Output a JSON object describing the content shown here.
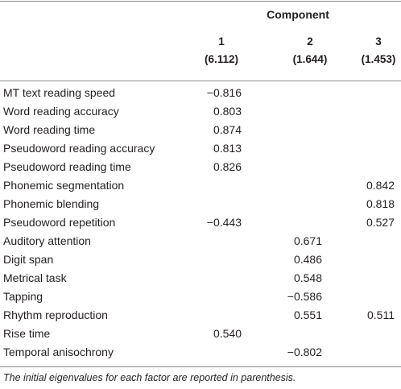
{
  "table": {
    "group_header": "Component",
    "columns": [
      {
        "number": "1",
        "eigenvalue": "(6.112)"
      },
      {
        "number": "2",
        "eigenvalue": "(1.644)"
      },
      {
        "number": "3",
        "eigenvalue": "(1.453)"
      }
    ],
    "rows": [
      {
        "label": "MT text reading speed",
        "v1": "−0.816",
        "v2": "",
        "v3": ""
      },
      {
        "label": "Word reading accuracy",
        "v1": "0.803",
        "v2": "",
        "v3": ""
      },
      {
        "label": "Word reading time",
        "v1": "0.874",
        "v2": "",
        "v3": ""
      },
      {
        "label": "Pseudoword reading accuracy",
        "v1": "0.813",
        "v2": "",
        "v3": ""
      },
      {
        "label": "Pseudoword reading time",
        "v1": "0.826",
        "v2": "",
        "v3": ""
      },
      {
        "label": "Phonemic segmentation",
        "v1": "",
        "v2": "",
        "v3": "0.842"
      },
      {
        "label": "Phonemic blending",
        "v1": "",
        "v2": "",
        "v3": "0.818"
      },
      {
        "label": "Pseudoword repetition",
        "v1": "−0.443",
        "v2": "",
        "v3": "0.527"
      },
      {
        "label": "Auditory attention",
        "v1": "",
        "v2": "0.671",
        "v3": ""
      },
      {
        "label": "Digit span",
        "v1": "",
        "v2": "0.486",
        "v3": ""
      },
      {
        "label": "Metrical task",
        "v1": "",
        "v2": "0.548",
        "v3": ""
      },
      {
        "label": "Tapping",
        "v1": "",
        "v2": "−0.586",
        "v3": ""
      },
      {
        "label": "Rhythm reproduction",
        "v1": "",
        "v2": "0.551",
        "v3": "0.511"
      },
      {
        "label": "Rise time",
        "v1": "0.540",
        "v2": "",
        "v3": ""
      },
      {
        "label": "Temporal anisochrony",
        "v1": "",
        "v2": "−0.802",
        "v3": ""
      }
    ],
    "footnote": "The initial eigenvalues for each factor are reported in parenthesis."
  }
}
